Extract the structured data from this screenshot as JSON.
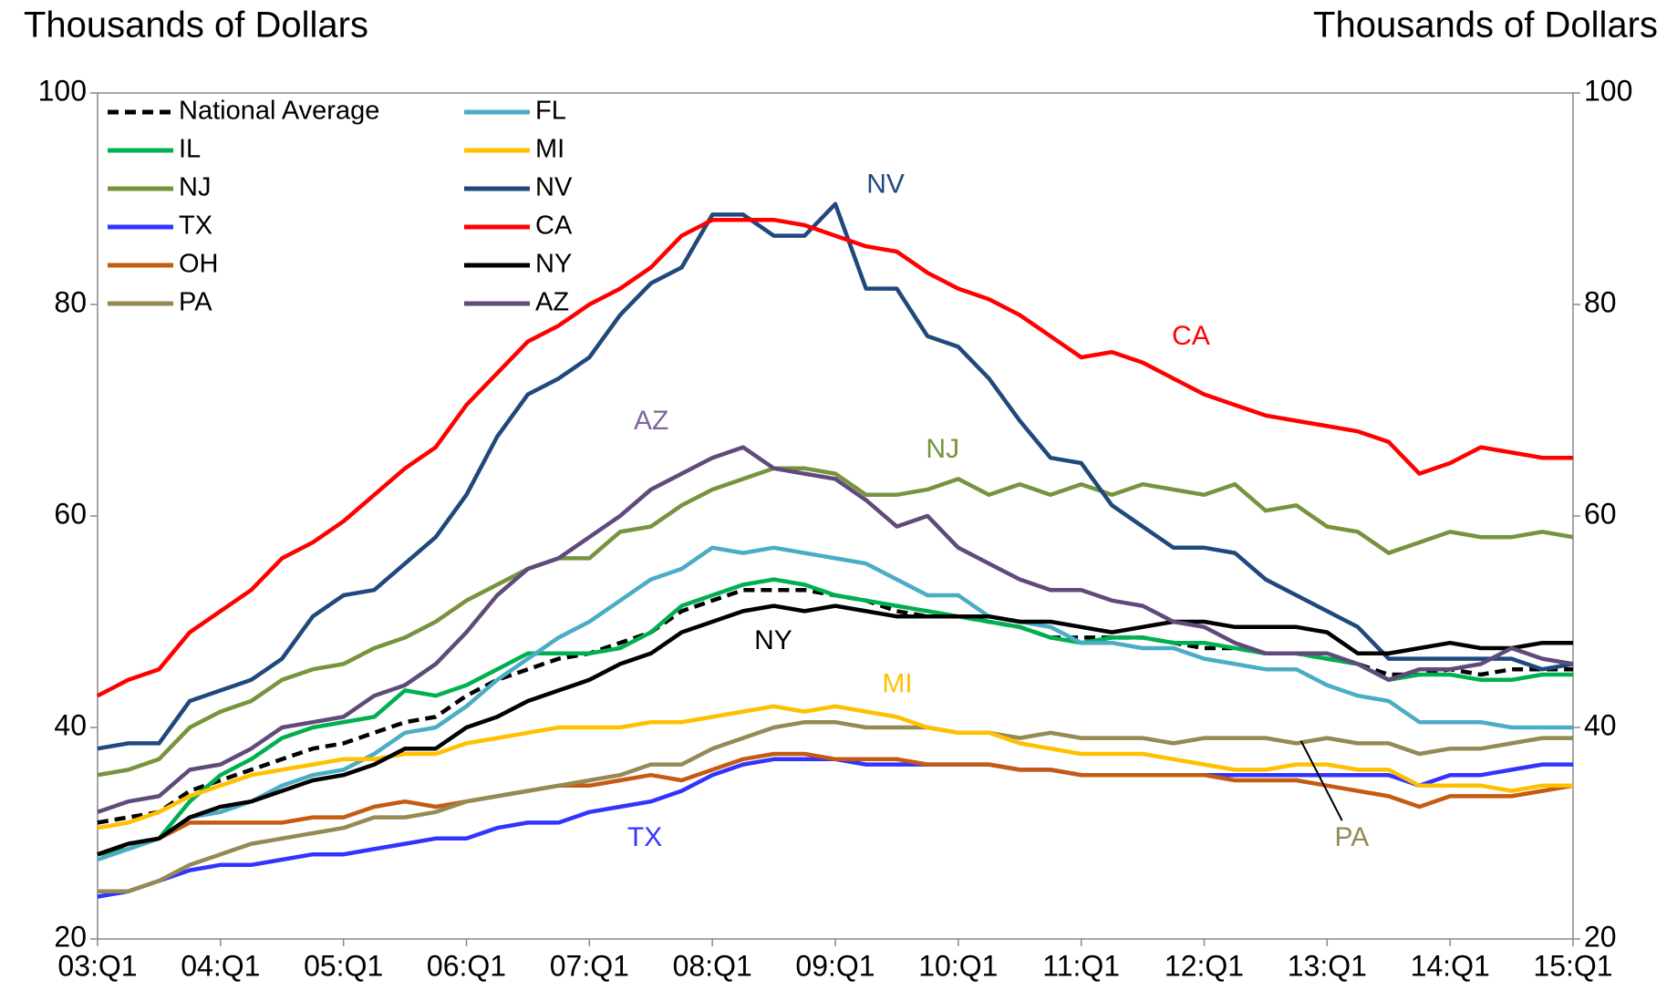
{
  "chart_data": {
    "type": "line",
    "y_label": "Thousands of Dollars",
    "y2_label": "Thousands of Dollars",
    "categories": [
      "03:Q1",
      null,
      null,
      null,
      "04:Q1",
      null,
      null,
      null,
      "05:Q1",
      null,
      null,
      null,
      "06:Q1",
      null,
      null,
      null,
      "07:Q1",
      null,
      null,
      null,
      "08:Q1",
      null,
      null,
      null,
      "09:Q1",
      null,
      null,
      null,
      "10:Q1",
      null,
      null,
      null,
      "11:Q1",
      null,
      null,
      null,
      "12:Q1",
      null,
      null,
      null,
      "13:Q1",
      null,
      null,
      null,
      "14:Q1",
      null,
      null,
      null,
      "15:Q1"
    ],
    "ylim": [
      20,
      100
    ],
    "yticks": [
      20,
      40,
      60,
      80,
      100
    ],
    "y2lim": [
      20,
      100
    ],
    "y2ticks": [
      20,
      40,
      60,
      80,
      100
    ],
    "series": [
      {
        "name": "National Average",
        "color": "#000000",
        "dashed": true,
        "values": [
          31,
          31.5,
          32,
          34,
          35,
          36,
          37,
          38,
          38.5,
          39.5,
          40.5,
          41,
          43,
          44.5,
          45.5,
          46.5,
          47,
          48,
          49,
          51,
          52,
          53,
          53,
          53,
          52.5,
          52,
          51,
          50.5,
          50.5,
          50,
          49.5,
          48.5,
          48.5,
          48.5,
          48.5,
          48,
          47.5,
          47.5,
          47,
          47,
          46.5,
          46,
          45,
          45,
          45.5,
          45,
          45.5,
          45.5,
          45.5
        ]
      },
      {
        "name": "IL",
        "color": "#00b050",
        "values": [
          28,
          28.5,
          29.5,
          33,
          35.5,
          37,
          39,
          40,
          40.5,
          41,
          43.5,
          43,
          44,
          45.5,
          47,
          47,
          47,
          47.5,
          49,
          51.5,
          52.5,
          53.5,
          54,
          53.5,
          52.5,
          52,
          51.5,
          51,
          50.5,
          50,
          49.5,
          48.5,
          48,
          48.5,
          48.5,
          48,
          48,
          47.5,
          47,
          47,
          46.5,
          46,
          44.5,
          45,
          45,
          44.5,
          44.5,
          45,
          45
        ]
      },
      {
        "name": "NJ",
        "color": "#77933c",
        "values": [
          35.5,
          36,
          37,
          40,
          41.5,
          42.5,
          44.5,
          45.5,
          46,
          47.5,
          48.5,
          50,
          52,
          53.5,
          55,
          56,
          56,
          58.5,
          59,
          61,
          62.5,
          63.5,
          64.5,
          64.5,
          64,
          62,
          62,
          62.5,
          63.5,
          62,
          63,
          62,
          63,
          62,
          63,
          62.5,
          62,
          63,
          60.5,
          61,
          59,
          58.5,
          56.5,
          57.5,
          58.5,
          58,
          58,
          58.5,
          58
        ]
      },
      {
        "name": "TX",
        "color": "#3333ff",
        "values": [
          24,
          24.5,
          25.5,
          26.5,
          27,
          27,
          27.5,
          28,
          28,
          28.5,
          29,
          29.5,
          29.5,
          30.5,
          31,
          31,
          32,
          32.5,
          33,
          34,
          35.5,
          36.5,
          37,
          37,
          37,
          36.5,
          36.5,
          36.5,
          36.5,
          36.5,
          36,
          36,
          35.5,
          35.5,
          35.5,
          35.5,
          35.5,
          35.5,
          35.5,
          35.5,
          35.5,
          35.5,
          35.5,
          34.5,
          35.5,
          35.5,
          36,
          36.5,
          36.5
        ]
      },
      {
        "name": "OH",
        "color": "#c55a11",
        "values": [
          28,
          29,
          29.5,
          31,
          31,
          31,
          31,
          31.5,
          31.5,
          32.5,
          33,
          32.5,
          33,
          33.5,
          34,
          34.5,
          34.5,
          35,
          35.5,
          35,
          36,
          37,
          37.5,
          37.5,
          37,
          37,
          37,
          36.5,
          36.5,
          36.5,
          36,
          36,
          35.5,
          35.5,
          35.5,
          35.5,
          35.5,
          35,
          35,
          35,
          34.5,
          34,
          33.5,
          32.5,
          33.5,
          33.5,
          33.5,
          34,
          34.5
        ]
      },
      {
        "name": "PA",
        "color": "#948a54",
        "values": [
          24.5,
          24.5,
          25.5,
          27,
          28,
          29,
          29.5,
          30,
          30.5,
          31.5,
          31.5,
          32,
          33,
          33.5,
          34,
          34.5,
          35,
          35.5,
          36.5,
          36.5,
          38,
          39,
          40,
          40.5,
          40.5,
          40,
          40,
          40,
          39.5,
          39.5,
          39,
          39.5,
          39,
          39,
          39,
          38.5,
          39,
          39,
          39,
          38.5,
          39,
          38.5,
          38.5,
          37.5,
          38,
          38,
          38.5,
          39,
          39
        ]
      },
      {
        "name": "FL",
        "color": "#4bacc6",
        "values": [
          27.5,
          28.5,
          29.5,
          31.5,
          32,
          33,
          34.5,
          35.5,
          36,
          37.5,
          39.5,
          40,
          42,
          44.5,
          46.5,
          48.5,
          50,
          52,
          54,
          55,
          57,
          56.5,
          57,
          56.5,
          56,
          55.5,
          54,
          52.5,
          52.5,
          50.5,
          50,
          49.5,
          48,
          48,
          47.5,
          47.5,
          46.5,
          46,
          45.5,
          45.5,
          44,
          43,
          42.5,
          40.5,
          40.5,
          40.5,
          40,
          40,
          40
        ]
      },
      {
        "name": "MI",
        "color": "#ffc000",
        "values": [
          30.5,
          31,
          32,
          33.5,
          34.5,
          35.5,
          36,
          36.5,
          37,
          37,
          37.5,
          37.5,
          38.5,
          39,
          39.5,
          40,
          40,
          40,
          40.5,
          40.5,
          41,
          41.5,
          42,
          41.5,
          42,
          41.5,
          41,
          40,
          39.5,
          39.5,
          38.5,
          38,
          37.5,
          37.5,
          37.5,
          37,
          36.5,
          36,
          36,
          36.5,
          36.5,
          36,
          36,
          34.5,
          34.5,
          34.5,
          34,
          34.5,
          34.5
        ]
      },
      {
        "name": "NV",
        "color": "#1f497d",
        "values": [
          38,
          38.5,
          38.5,
          42.5,
          43.5,
          44.5,
          46.5,
          50.5,
          52.5,
          53,
          55.5,
          58,
          62,
          67.5,
          71.5,
          73,
          75,
          79,
          82,
          83.5,
          88.5,
          88.5,
          86.5,
          86.5,
          89.5,
          81.5,
          81.5,
          77,
          76,
          73,
          69,
          65.5,
          65,
          61,
          59,
          57,
          57,
          56.5,
          54,
          52.5,
          51,
          49.5,
          46.5,
          46.5,
          46.5,
          46.5,
          46.5,
          45.5,
          46
        ]
      },
      {
        "name": "CA",
        "color": "#ff0000",
        "values": [
          43,
          44.5,
          45.5,
          49,
          51,
          53,
          56,
          57.5,
          59.5,
          62,
          64.5,
          66.5,
          70.5,
          73.5,
          76.5,
          78,
          80,
          81.5,
          83.5,
          86.5,
          88,
          88,
          88,
          87.5,
          86.5,
          85.5,
          85,
          83,
          81.5,
          80.5,
          79,
          77,
          75,
          75.5,
          74.5,
          73,
          71.5,
          70.5,
          69.5,
          69,
          68.5,
          68,
          67,
          64,
          65,
          66.5,
          66,
          65.5,
          65.5
        ]
      },
      {
        "name": "NY",
        "color": "#000000",
        "values": [
          28,
          29,
          29.5,
          31.5,
          32.5,
          33,
          34,
          35,
          35.5,
          36.5,
          38,
          38,
          40,
          41,
          42.5,
          43.5,
          44.5,
          46,
          47,
          49,
          50,
          51,
          51.5,
          51,
          51.5,
          51,
          50.5,
          50.5,
          50.5,
          50.5,
          50,
          50,
          49.5,
          49,
          49.5,
          50,
          50,
          49.5,
          49.5,
          49.5,
          49,
          47,
          47,
          47.5,
          48,
          47.5,
          47.5,
          48,
          48
        ]
      },
      {
        "name": "AZ",
        "color": "#604a7b",
        "values": [
          32,
          33,
          33.5,
          36,
          36.5,
          38,
          40,
          40.5,
          41,
          43,
          44,
          46,
          49,
          52.5,
          55,
          56,
          58,
          60,
          62.5,
          64,
          65.5,
          66.5,
          64.5,
          64,
          63.5,
          61.5,
          59,
          60,
          57,
          55.5,
          54,
          53,
          53,
          52,
          51.5,
          50,
          49.5,
          48,
          47,
          47,
          47,
          46,
          44.5,
          45.5,
          45.5,
          46,
          47.5,
          46.5,
          46
        ]
      }
    ],
    "annotations": [
      "NV",
      "CA",
      "AZ",
      "NJ",
      "NY",
      "MI",
      "TX",
      "PA"
    ]
  }
}
